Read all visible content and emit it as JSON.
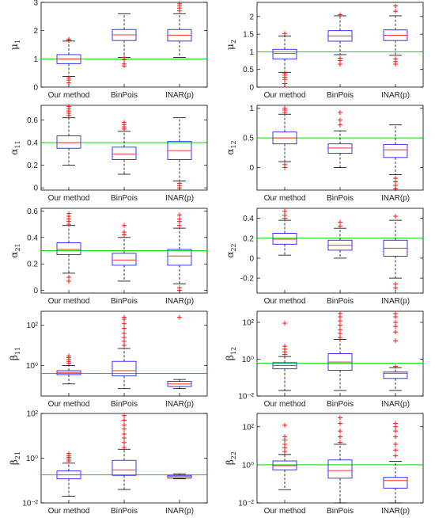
{
  "colors": {
    "box": "#2020ff",
    "median": "#ff3030",
    "whisker": "#000000",
    "outlier": "#ff0000",
    "truth_line": "#00dd00",
    "axes": "#000000"
  },
  "chart_data": [
    {
      "type": "box",
      "ylabel": "μ",
      "ylabel_sub": "1",
      "scale": "linear",
      "ylim": [
        0,
        3
      ],
      "yticks": [
        0,
        1,
        2,
        3
      ],
      "ytick_labels": [
        "0",
        "1",
        "2",
        "3"
      ],
      "categories": [
        "Our method",
        "BinPois",
        "INAR(p)"
      ],
      "reference_line": 1,
      "boxes": [
        {
          "q1": 0.83,
          "median": 1.0,
          "q3": 1.15,
          "whisker_low": 0.38,
          "whisker_high": 1.63,
          "outliers": [
            0.33,
            0.25,
            0.15,
            1.65,
            1.7
          ]
        },
        {
          "q1": 1.65,
          "median": 1.85,
          "q3": 2.04,
          "whisker_low": 1.05,
          "whisker_high": 2.6,
          "outliers": [
            1.05,
            0.97,
            0.75,
            0.82
          ]
        },
        {
          "q1": 1.63,
          "median": 1.84,
          "q3": 2.04,
          "whisker_low": 1.05,
          "whisker_high": 2.6,
          "outliers": [
            2.7,
            2.8,
            2.88,
            2.95
          ]
        }
      ]
    },
    {
      "type": "box",
      "ylabel": "μ",
      "ylabel_sub": "2",
      "scale": "linear",
      "ylim": [
        0,
        2.4
      ],
      "yticks": [
        0,
        0.5,
        1,
        1.5,
        2
      ],
      "ytick_labels": [
        "0",
        "0.5",
        "1",
        "1.5",
        "2"
      ],
      "categories": [
        "Our method",
        "BinPois",
        "INAR(p)"
      ],
      "reference_line": 1,
      "boxes": [
        {
          "q1": 0.8,
          "median": 0.95,
          "q3": 1.07,
          "whisker_low": 0.42,
          "whisker_high": 1.45,
          "outliers": [
            0.4,
            0.34,
            0.28,
            0.22,
            0.1,
            1.52
          ]
        },
        {
          "q1": 1.3,
          "median": 1.45,
          "q3": 1.6,
          "whisker_low": 0.92,
          "whisker_high": 2.02,
          "outliers": [
            0.82,
            0.75,
            0.65,
            2.05
          ]
        },
        {
          "q1": 1.32,
          "median": 1.47,
          "q3": 1.62,
          "whisker_low": 0.9,
          "whisker_high": 2.02,
          "outliers": [
            0.8,
            0.72,
            0.65,
            2.15,
            2.3
          ]
        }
      ]
    },
    {
      "type": "box",
      "ylabel": "α",
      "ylabel_sub": "11",
      "scale": "linear",
      "ylim": [
        -0.02,
        0.73
      ],
      "yticks": [
        0,
        0.2,
        0.4,
        0.6
      ],
      "ytick_labels": [
        "0",
        "0.2",
        "0.4",
        "0.6"
      ],
      "categories": [
        "Our method",
        "BinPois",
        "INAR(p)"
      ],
      "reference_line": 0.4,
      "boxes": [
        {
          "q1": 0.35,
          "median": 0.4,
          "q3": 0.46,
          "whisker_low": 0.2,
          "whisker_high": 0.62,
          "outliers": [
            0.64,
            0.66,
            0.68,
            0.7,
            0.72
          ]
        },
        {
          "q1": 0.25,
          "median": 0.3,
          "q3": 0.36,
          "whisker_low": 0.12,
          "whisker_high": 0.5,
          "outliers": [
            0.52,
            0.54,
            0.56,
            0.58
          ]
        },
        {
          "q1": 0.25,
          "median": 0.33,
          "q3": 0.41,
          "whisker_low": 0.06,
          "whisker_high": 0.62,
          "outliers": [
            0.04,
            0.02,
            0.0
          ]
        }
      ]
    },
    {
      "type": "box",
      "ylabel": "α",
      "ylabel_sub": "12",
      "scale": "linear",
      "ylim": [
        -0.38,
        1.05
      ],
      "yticks": [
        0,
        0.5,
        1
      ],
      "ytick_labels": [
        "0",
        "0.5",
        "1"
      ],
      "categories": [
        "Our method",
        "BinPois",
        "INAR(p)"
      ],
      "reference_line": 0.5,
      "boxes": [
        {
          "q1": 0.4,
          "median": 0.5,
          "q3": 0.6,
          "whisker_low": 0.1,
          "whisker_high": 0.9,
          "outliers": [
            0.05,
            0.0,
            0.93,
            0.97,
            1.0
          ]
        },
        {
          "q1": 0.24,
          "median": 0.33,
          "q3": 0.4,
          "whisker_low": 0.0,
          "whisker_high": 0.62,
          "outliers": [
            0.72,
            0.8,
            0.93
          ]
        },
        {
          "q1": 0.17,
          "median": 0.3,
          "q3": 0.39,
          "whisker_low": -0.12,
          "whisker_high": 0.72,
          "outliers": [
            -0.18,
            -0.24,
            -0.3,
            -0.36
          ]
        }
      ]
    },
    {
      "type": "box",
      "ylabel": "α",
      "ylabel_sub": "21",
      "scale": "linear",
      "ylim": [
        -0.02,
        0.62
      ],
      "yticks": [
        0,
        0.2,
        0.4,
        0.6
      ],
      "ytick_labels": [
        "0",
        "0.2",
        "0.4",
        "0.6"
      ],
      "categories": [
        "Our method",
        "BinPois",
        "INAR(p)"
      ],
      "reference_line": 0.3,
      "boxes": [
        {
          "q1": 0.27,
          "median": 0.31,
          "q3": 0.36,
          "whisker_low": 0.13,
          "whisker_high": 0.49,
          "outliers": [
            0.1,
            0.07,
            0.5,
            0.52,
            0.54,
            0.56,
            0.58
          ]
        },
        {
          "q1": 0.19,
          "median": 0.23,
          "q3": 0.28,
          "whisker_low": 0.07,
          "whisker_high": 0.4,
          "outliers": [
            0.42,
            0.44,
            0.49
          ]
        },
        {
          "q1": 0.19,
          "median": 0.26,
          "q3": 0.31,
          "whisker_low": 0.05,
          "whisker_high": 0.47,
          "outliers": [
            0.02,
            0.0,
            0.49,
            0.52,
            0.54,
            0.57
          ]
        }
      ]
    },
    {
      "type": "box",
      "ylabel": "α",
      "ylabel_sub": "22",
      "scale": "linear",
      "ylim": [
        -0.35,
        0.5
      ],
      "yticks": [
        -0.2,
        0,
        0.2,
        0.4
      ],
      "ytick_labels": [
        "-0.2",
        "0",
        "0.2",
        "0.4"
      ],
      "categories": [
        "Our method",
        "BinPois",
        "INAR(p)"
      ],
      "reference_line": 0.2,
      "boxes": [
        {
          "q1": 0.14,
          "median": 0.19,
          "q3": 0.25,
          "whisker_low": 0.03,
          "whisker_high": 0.38,
          "outliers": [
            0.4,
            0.43,
            0.47
          ]
        },
        {
          "q1": 0.08,
          "median": 0.13,
          "q3": 0.18,
          "whisker_low": 0.0,
          "whisker_high": 0.3,
          "outliers": [
            0.32,
            0.36
          ]
        },
        {
          "q1": 0.02,
          "median": 0.1,
          "q3": 0.18,
          "whisker_low": -0.2,
          "whisker_high": 0.38,
          "outliers": [
            -0.26,
            -0.3,
            0.42
          ]
        }
      ]
    },
    {
      "type": "box",
      "ylabel": "β",
      "ylabel_sub": "11",
      "scale": "log",
      "ylim": [
        0.03,
        500
      ],
      "yticks": [
        1,
        100
      ],
      "ytick_labels": [
        "10⁰",
        "10²"
      ],
      "categories": [
        "Our method",
        "BinPois",
        "INAR(p)"
      ],
      "reference_line": 0.4,
      "boxes": [
        {
          "q1": 0.35,
          "median": 0.45,
          "q3": 0.55,
          "whisker_low": 0.12,
          "whisker_high": 1.0,
          "outliers": [
            1.3,
            1.6,
            2.0,
            2.5,
            3.0
          ]
        },
        {
          "q1": 0.3,
          "median": 0.55,
          "q3": 1.6,
          "whisker_low": 0.07,
          "whisker_high": 7,
          "outliers": [
            10,
            16,
            25,
            40,
            70,
            120,
            200,
            250
          ]
        },
        {
          "q1": 0.09,
          "median": 0.12,
          "q3": 0.16,
          "whisker_low": 0.07,
          "whisker_high": 0.2,
          "outliers": [
            250
          ]
        }
      ]
    },
    {
      "type": "box",
      "ylabel": "β",
      "ylabel_sub": "12",
      "scale": "log",
      "ylim": [
        0.01,
        400
      ],
      "yticks": [
        0.01,
        1,
        100
      ],
      "ytick_labels": [
        "10⁻²",
        "10⁰",
        "10²"
      ],
      "categories": [
        "Our method",
        "BinPois",
        "INAR(p)"
      ],
      "reference_line": 0.6,
      "boxes": [
        {
          "q1": 0.3,
          "median": 0.45,
          "q3": 0.65,
          "whisker_low": 0.02,
          "whisker_high": 1.4,
          "outliers": [
            1.8,
            2.5,
            3.5,
            5.0,
            90
          ]
        },
        {
          "q1": 0.25,
          "median": 0.7,
          "q3": 2.0,
          "whisker_low": 0.02,
          "whisker_high": 12,
          "outliers": [
            15,
            25,
            40,
            70,
            120,
            200,
            300
          ]
        },
        {
          "q1": 0.09,
          "median": 0.17,
          "q3": 0.2,
          "whisker_low": 0.02,
          "whisker_high": 0.35,
          "outliers": [
            0.4,
            10,
            30,
            60,
            100,
            200,
            300
          ]
        }
      ]
    },
    {
      "type": "box",
      "ylabel": "β",
      "ylabel_sub": "21",
      "scale": "log",
      "ylim": [
        0.01,
        100
      ],
      "yticks": [
        0.01,
        1,
        100
      ],
      "ytick_labels": [
        "10⁻²",
        "10⁰",
        "10²"
      ],
      "categories": [
        "Our method",
        "BinPois",
        "INAR(p)"
      ],
      "reference_line": 0.18,
      "boxes": [
        {
          "q1": 0.12,
          "median": 0.18,
          "q3": 0.27,
          "whisker_low": 0.02,
          "whisker_high": 0.6,
          "outliers": [
            0.75,
            0.9,
            1.1,
            1.3,
            1.6
          ]
        },
        {
          "q1": 0.17,
          "median": 0.3,
          "q3": 0.8,
          "whisker_low": 0.04,
          "whisker_high": 2.5,
          "outliers": [
            3,
            5,
            8,
            12,
            20,
            30,
            50,
            80
          ]
        },
        {
          "q1": 0.13,
          "median": 0.15,
          "q3": 0.17,
          "whisker_low": 0.12,
          "whisker_high": 0.2,
          "outliers": []
        }
      ]
    },
    {
      "type": "box",
      "ylabel": "β",
      "ylabel_sub": "22",
      "scale": "log",
      "ylim": [
        0.01,
        500
      ],
      "yticks": [
        0.01,
        1,
        100
      ],
      "ytick_labels": [
        "10⁻²",
        "10⁰",
        "10²"
      ],
      "categories": [
        "Our method",
        "BinPois",
        "INAR(p)"
      ],
      "reference_line": 1,
      "boxes": [
        {
          "q1": 0.55,
          "median": 0.9,
          "q3": 1.6,
          "whisker_low": 0.05,
          "whisker_high": 3.5,
          "outliers": [
            5,
            8,
            12,
            20,
            30,
            120
          ]
        },
        {
          "q1": 0.2,
          "median": 0.5,
          "q3": 1.8,
          "whisker_low": 0.01,
          "whisker_high": 12,
          "outliers": [
            15,
            30,
            60,
            150,
            300
          ]
        },
        {
          "q1": 0.06,
          "median": 0.15,
          "q3": 0.22,
          "whisker_low": 0.01,
          "whisker_high": 1.5,
          "outliers": [
            3,
            6,
            12,
            30,
            60,
            100,
            150
          ]
        }
      ]
    }
  ]
}
